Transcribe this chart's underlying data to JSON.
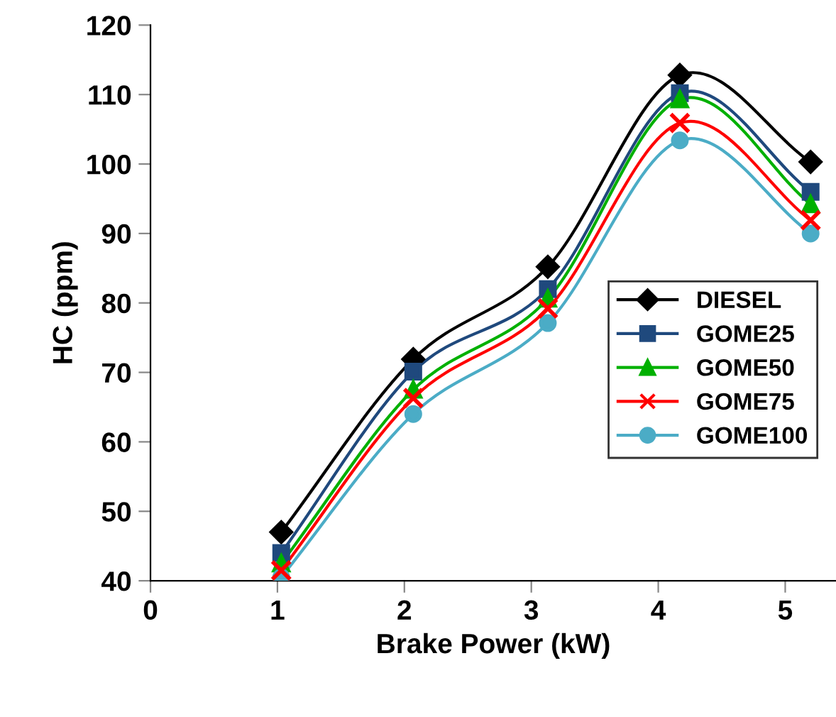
{
  "chart_data": {
    "type": "line",
    "xlabel": "Brake Power (kW)",
    "ylabel": "HC (ppm)",
    "x": [
      1.03,
      2.07,
      3.13,
      4.17,
      5.2
    ],
    "xlim": [
      0,
      5.4
    ],
    "xticks": [
      0,
      1,
      2,
      3,
      4,
      5
    ],
    "ylim": [
      40,
      120
    ],
    "yticks": [
      40,
      50,
      60,
      70,
      80,
      90,
      100,
      110,
      120
    ],
    "grid": false,
    "legend": "right",
    "line_style": "solid",
    "series": [
      {
        "name": "DIESEL",
        "color": "#000000",
        "marker": "diamond",
        "values": [
          47,
          71.9,
          85.2,
          112.8,
          100.3
        ]
      },
      {
        "name": "GOME25",
        "color": "#1f497d",
        "marker": "square",
        "values": [
          44,
          70.1,
          82,
          110.2,
          96
        ]
      },
      {
        "name": "GOME50",
        "color": "#00b000",
        "marker": "triangle",
        "values": [
          42.5,
          67.5,
          80.6,
          109.3,
          94.2
        ]
      },
      {
        "name": "GOME75",
        "color": "#ff0000",
        "marker": "cross",
        "values": [
          41.5,
          66.3,
          79.2,
          105.9,
          91.9
        ]
      },
      {
        "name": "GOME100",
        "color": "#4bacc6",
        "marker": "circle",
        "values": [
          40.5,
          64,
          77.1,
          103.4,
          90
        ]
      }
    ]
  }
}
